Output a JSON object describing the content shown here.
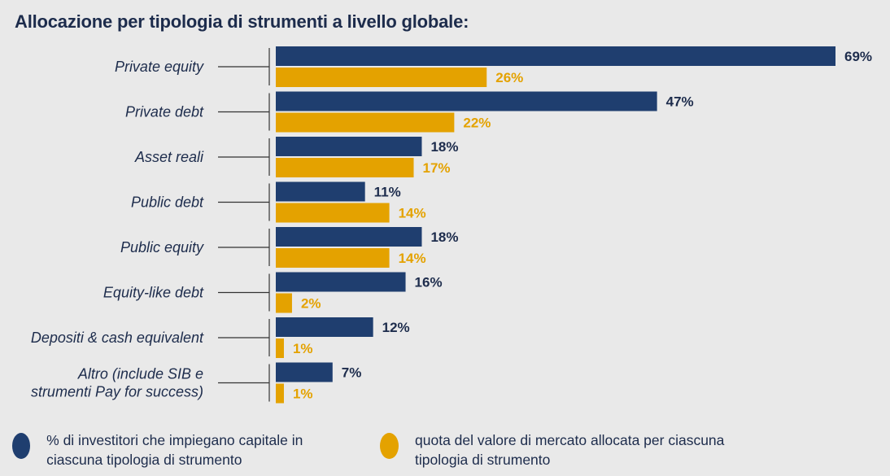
{
  "title": "Allocazione per tipologia di strumenti a livello globale:",
  "colors": {
    "series1": "#1f3e6f",
    "series2": "#e4a200",
    "label1": "#1d2c4c",
    "label2": "#e4a200",
    "axis": "#333333"
  },
  "legend": {
    "series1": "% di investitori che impiegano capitale in ciascuna tipologia di strumento",
    "series2": "quota del valore di mercato allocata per ciascuna tipologia di strumento"
  },
  "chart_data": {
    "type": "bar",
    "orientation": "horizontal",
    "categories": [
      "Private equity",
      "Private debt",
      "Asset reali",
      "Public debt",
      "Public equity",
      "Equity-like debt",
      "Depositi & cash equivalent",
      "Altro (include SIB e strumenti Pay for success)"
    ],
    "category_lines": [
      [
        "Private equity"
      ],
      [
        "Private debt"
      ],
      [
        "Asset reali"
      ],
      [
        "Public debt"
      ],
      [
        "Public equity"
      ],
      [
        "Equity-like debt"
      ],
      [
        "Depositi & cash equivalent"
      ],
      [
        "Altro (include SIB e",
        "strumenti Pay for success)"
      ]
    ],
    "series": [
      {
        "name": "% di investitori che impiegano capitale in ciascuna tipologia di strumento",
        "values": [
          69,
          47,
          18,
          11,
          18,
          16,
          12,
          7
        ]
      },
      {
        "name": "quota del valore di mercato allocata per ciascuna tipologia di strumento",
        "values": [
          26,
          22,
          17,
          14,
          14,
          2,
          1,
          1
        ]
      }
    ],
    "value_labels": [
      [
        "69%",
        "47%",
        "18%",
        "11%",
        "18%",
        "16%",
        "12%",
        "7%"
      ],
      [
        "26%",
        "22%",
        "17%",
        "14%",
        "14%",
        "2%",
        "1%",
        "1%"
      ]
    ],
    "xlim": [
      0,
      69
    ],
    "legend_position": "bottom",
    "grid": false
  }
}
